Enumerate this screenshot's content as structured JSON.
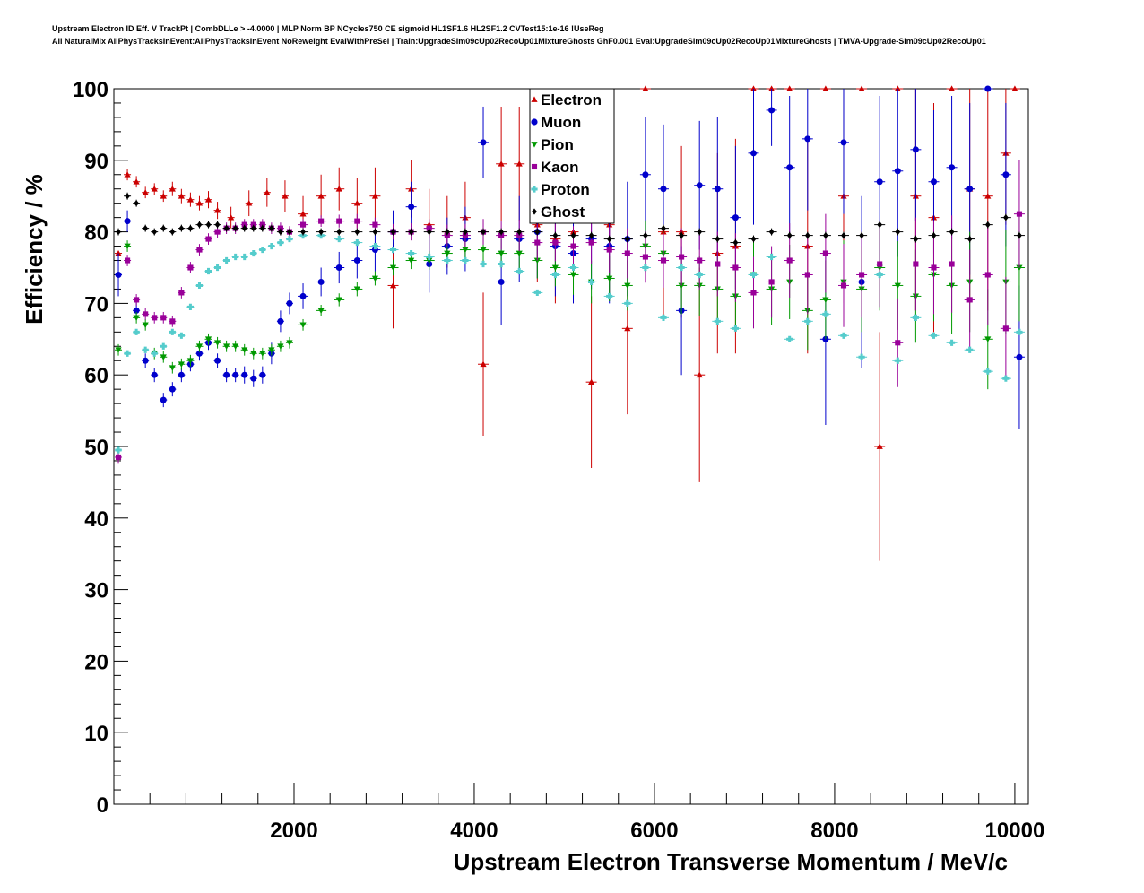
{
  "header": {
    "line1": "Upstream Electron ID Eff. V TrackPt | CombDLLe > -4.0000 | MLP Norm BP NCycles750 CE sigmoid HL1SF1.6 HL2SF1.2 CVTest15:1e-16 !UseReg",
    "line2": "All NaturalMix AllPhysTracksInEvent:AllPhysTracksInEvent NoReweight EvalWithPreSel | Train:UpgradeSim09cUp02RecoUp01MixtureGhosts GhF0.001 Eval:UpgradeSim09cUp02RecoUp01MixtureGhosts | TMVA-Upgrade-Sim09cUp02RecoUp01"
  },
  "chart_data": {
    "type": "scatter",
    "title": "Upstream Electron ID Eff. V TrackPt | CombDLLe > -4.0000 | MLP Norm BP NCycles750 CE sigmoid HL1SF1.6 HL2SF1.2 CVTest15:1e-16 !UseReg",
    "xlabel": "Upstream Electron Transverse Momentum / MeV/c",
    "ylabel": "Efficiency / %",
    "xlim": [
      0,
      10150
    ],
    "ylim": [
      0,
      100
    ],
    "xticks": [
      2000,
      4000,
      6000,
      8000,
      10000
    ],
    "yticks": [
      0,
      10,
      20,
      30,
      40,
      50,
      60,
      70,
      80,
      90,
      100
    ],
    "legend_position": "top-center",
    "grid": false,
    "series": [
      {
        "name": "Electron",
        "marker": "triangle-up",
        "color": "#cc0000",
        "x": [
          50,
          150,
          250,
          350,
          450,
          550,
          650,
          750,
          850,
          950,
          1050,
          1150,
          1300,
          1500,
          1700,
          1900,
          2100,
          2300,
          2500,
          2700,
          2900,
          3100,
          3300,
          3500,
          3700,
          3900,
          4100,
          4300,
          4500,
          4700,
          4900,
          5100,
          5300,
          5500,
          5700,
          5900,
          6100,
          6300,
          6500,
          6700,
          6900,
          7100,
          7300,
          7500,
          7700,
          7900,
          8100,
          8300,
          8500,
          8700,
          8900,
          9100,
          9300,
          9500,
          9700,
          9900,
          10000
        ],
        "y": [
          77,
          88,
          87,
          85.5,
          86,
          85,
          86,
          85,
          84.5,
          84,
          84.5,
          83,
          82,
          84,
          85.5,
          85,
          82.5,
          85,
          86,
          84,
          85,
          72.5,
          86,
          81,
          80,
          82,
          61.5,
          89.5,
          89.5,
          81,
          79,
          80,
          59,
          81,
          66.5,
          100,
          80,
          80,
          60,
          77,
          78,
          100,
          100,
          100,
          78,
          100,
          85,
          100,
          50,
          100,
          85,
          82,
          100,
          86,
          85,
          91,
          100
        ],
        "err": [
          0,
          0.8,
          0.8,
          0.8,
          0.8,
          0.8,
          1,
          1,
          1,
          1,
          1.2,
          1.2,
          1.5,
          1.8,
          2,
          2.2,
          2.5,
          3,
          3,
          3.5,
          4,
          6,
          4,
          5,
          5,
          5,
          10,
          8,
          8,
          8,
          9,
          10,
          12,
          10,
          12,
          0,
          12,
          12,
          15,
          14,
          15,
          0,
          0,
          0,
          15,
          0,
          15,
          0,
          16,
          0,
          16,
          16,
          0,
          16,
          16,
          10,
          0
        ]
      },
      {
        "name": "Muon",
        "marker": "circle",
        "color": "#0000cc",
        "x": [
          50,
          150,
          250,
          350,
          450,
          550,
          650,
          750,
          850,
          950,
          1050,
          1150,
          1250,
          1350,
          1450,
          1550,
          1650,
          1750,
          1850,
          1950,
          2100,
          2300,
          2500,
          2700,
          2900,
          3100,
          3300,
          3500,
          3700,
          3900,
          4100,
          4300,
          4500,
          4700,
          4900,
          5100,
          5300,
          5500,
          5700,
          5900,
          6100,
          6300,
          6500,
          6700,
          6900,
          7100,
          7300,
          7500,
          7700,
          7900,
          8100,
          8300,
          8500,
          8700,
          8900,
          9100,
          9300,
          9500,
          9700,
          9900,
          10050
        ],
        "y": [
          74,
          81.5,
          69,
          62,
          60,
          56.5,
          58,
          60,
          61.5,
          63,
          64.5,
          62,
          60,
          60,
          60,
          59.5,
          60,
          63,
          67.5,
          70,
          71,
          73,
          75,
          76,
          77.5,
          80,
          83.5,
          75.5,
          78,
          79,
          92.5,
          73,
          79,
          80,
          78,
          77,
          79,
          78,
          79,
          88,
          86,
          69,
          86.5,
          86,
          82,
          91,
          97,
          89,
          93,
          65,
          92.5,
          73,
          87,
          88.5,
          91.5,
          87,
          89,
          86,
          100,
          88,
          62.5
        ],
        "err": [
          3,
          1.5,
          1.2,
          1,
          1,
          1,
          1,
          1,
          1,
          1,
          1,
          1,
          1,
          1,
          1.2,
          1.2,
          1.2,
          1.5,
          1.5,
          1.5,
          1.8,
          2,
          2.2,
          2.5,
          3,
          3,
          3.5,
          4,
          4,
          4.5,
          5,
          6,
          6,
          6.5,
          7,
          7,
          7,
          8,
          8,
          8,
          9,
          9,
          9,
          10,
          10,
          10,
          5,
          10,
          10,
          12,
          10,
          12,
          12,
          12,
          10,
          10,
          10,
          12,
          0,
          10,
          10
        ]
      },
      {
        "name": "Pion",
        "marker": "triangle-down",
        "color": "#009900",
        "x": [
          50,
          150,
          250,
          350,
          450,
          550,
          650,
          750,
          850,
          950,
          1050,
          1150,
          1250,
          1350,
          1450,
          1550,
          1650,
          1750,
          1850,
          1950,
          2100,
          2300,
          2500,
          2700,
          2900,
          3100,
          3300,
          3500,
          3700,
          3900,
          4100,
          4300,
          4500,
          4700,
          4900,
          5100,
          5300,
          5500,
          5700,
          5900,
          6100,
          6300,
          6500,
          6700,
          6900,
          7100,
          7300,
          7500,
          7700,
          7900,
          8100,
          8300,
          8500,
          8700,
          8900,
          9100,
          9300,
          9500,
          9700,
          9900,
          10050
        ],
        "y": [
          63.5,
          78,
          68,
          67,
          63,
          62.5,
          61,
          61.5,
          62,
          64,
          65,
          64.5,
          64,
          64,
          63.5,
          63,
          63,
          63.5,
          64,
          64.5,
          67,
          69,
          70.5,
          72,
          73.5,
          75,
          76,
          76,
          77,
          77.5,
          77.5,
          77,
          77,
          76,
          75,
          74,
          73,
          73.5,
          72.5,
          78,
          77,
          72.5,
          72.5,
          72,
          71,
          74,
          72,
          73,
          69,
          70.5,
          73,
          72,
          75,
          72.5,
          71,
          74,
          72.5,
          73,
          65,
          73,
          75
        ],
        "err": [
          0.8,
          0.8,
          0.8,
          0.8,
          0.8,
          0.8,
          0.8,
          0.8,
          0.8,
          0.8,
          0.8,
          0.8,
          0.8,
          0.8,
          0.8,
          0.8,
          0.8,
          0.8,
          0.8,
          0.8,
          0.8,
          0.8,
          0.9,
          1,
          1,
          1.1,
          1.2,
          1.3,
          1.5,
          1.6,
          1.8,
          2,
          2.2,
          2.5,
          2.6,
          2.8,
          3,
          3.2,
          3.5,
          3.6,
          3.8,
          4,
          4.2,
          4.5,
          4.8,
          5,
          5,
          5.2,
          5.5,
          5.5,
          5.8,
          6,
          6,
          6.2,
          6.5,
          6.5,
          6.8,
          7,
          7,
          7.2,
          7.5
        ]
      },
      {
        "name": "Kaon",
        "marker": "square",
        "color": "#990099",
        "x": [
          50,
          150,
          250,
          350,
          450,
          550,
          650,
          750,
          850,
          950,
          1050,
          1150,
          1250,
          1350,
          1450,
          1550,
          1650,
          1750,
          1850,
          1950,
          2100,
          2300,
          2500,
          2700,
          2900,
          3100,
          3300,
          3500,
          3700,
          3900,
          4100,
          4300,
          4500,
          4700,
          4900,
          5100,
          5300,
          5500,
          5700,
          5900,
          6100,
          6300,
          6500,
          6700,
          6900,
          7100,
          7300,
          7500,
          7700,
          7900,
          8100,
          8300,
          8500,
          8700,
          8900,
          9100,
          9300,
          9500,
          9700,
          9900,
          10050
        ],
        "y": [
          48.5,
          76,
          70.5,
          68.5,
          68,
          68,
          67.5,
          71.5,
          75,
          77.5,
          79,
          80,
          80.5,
          80.5,
          81,
          81,
          81,
          80.5,
          80.5,
          80,
          81,
          81.5,
          81.5,
          81.5,
          81,
          80,
          80,
          80.5,
          79.5,
          79.5,
          80,
          79.5,
          79.5,
          78.5,
          78.5,
          78,
          78.5,
          77.5,
          77,
          76.5,
          76,
          76.5,
          76,
          75.5,
          75,
          71.5,
          73,
          76,
          74,
          77,
          72.5,
          74,
          75.5,
          64.5,
          75.5,
          75,
          75.5,
          70.5,
          74,
          66.5,
          82.5
        ],
        "err": [
          0.8,
          0.8,
          0.8,
          0.8,
          0.8,
          0.8,
          0.8,
          0.8,
          0.8,
          0.8,
          0.8,
          0.8,
          0.8,
          0.8,
          0.8,
          0.8,
          0.8,
          0.8,
          0.8,
          0.8,
          0.8,
          0.8,
          0.9,
          1,
          1,
          1.1,
          1.2,
          1.3,
          1.5,
          1.6,
          1.8,
          2,
          2.2,
          2.5,
          2.6,
          2.8,
          3,
          3.2,
          3.5,
          3.6,
          3.8,
          4,
          4.2,
          4.5,
          4.8,
          5,
          5,
          5.2,
          5.5,
          5.5,
          5.8,
          6,
          6,
          6.2,
          6.5,
          6.5,
          6.8,
          7,
          7,
          7.2,
          7.5
        ]
      },
      {
        "name": "Proton",
        "marker": "cross",
        "color": "#55cccc",
        "x": [
          50,
          150,
          250,
          350,
          450,
          550,
          650,
          750,
          850,
          950,
          1050,
          1150,
          1250,
          1350,
          1450,
          1550,
          1650,
          1750,
          1850,
          1950,
          2100,
          2300,
          2500,
          2700,
          2900,
          3100,
          3300,
          3500,
          3700,
          3900,
          4100,
          4300,
          4500,
          4700,
          4900,
          5100,
          5300,
          5500,
          5700,
          5900,
          6100,
          6300,
          6500,
          6700,
          6900,
          7100,
          7300,
          7500,
          7700,
          7900,
          8100,
          8300,
          8500,
          8700,
          8900,
          9100,
          9300,
          9500,
          9700,
          9900,
          10050
        ],
        "y": [
          49.5,
          63,
          66,
          63.5,
          63,
          64,
          66,
          65.5,
          69.5,
          72.5,
          74.5,
          75,
          76,
          76.5,
          76.5,
          77,
          77.5,
          78,
          78.5,
          79,
          79.5,
          79.5,
          79,
          78.5,
          78,
          77.5,
          77,
          76.5,
          76,
          76,
          75.5,
          75.5,
          74.5,
          71.5,
          74,
          75,
          73,
          71,
          70,
          75,
          68,
          75,
          74,
          67.5,
          66.5,
          74,
          76.5,
          65,
          67.5,
          68.5,
          65.5,
          62.5,
          74,
          62,
          68,
          65.5,
          64.5,
          63.5,
          60.5,
          59.5,
          66
        ]
      },
      {
        "name": "Ghost",
        "marker": "diamond",
        "color": "#000000",
        "x": [
          50,
          150,
          250,
          350,
          450,
          550,
          650,
          750,
          850,
          950,
          1050,
          1150,
          1250,
          1350,
          1450,
          1550,
          1650,
          1750,
          1850,
          1950,
          2100,
          2300,
          2500,
          2700,
          2900,
          3100,
          3300,
          3500,
          3700,
          3900,
          4100,
          4300,
          4500,
          4700,
          4900,
          5100,
          5300,
          5500,
          5700,
          5900,
          6100,
          6300,
          6500,
          6700,
          6900,
          7100,
          7300,
          7500,
          7700,
          7900,
          8100,
          8300,
          8500,
          8700,
          8900,
          9100,
          9300,
          9500,
          9700,
          9900,
          10050
        ],
        "y": [
          80,
          85,
          84,
          80.5,
          80,
          80.5,
          80,
          80.5,
          80.5,
          81,
          81,
          81,
          80.5,
          80.5,
          80.5,
          80.5,
          80.5,
          80.5,
          80,
          80,
          80,
          80,
          80,
          80,
          80,
          80,
          80,
          80,
          80,
          80,
          80,
          80,
          80,
          80,
          79.5,
          79.5,
          79.5,
          79,
          79,
          79.5,
          80.5,
          79.5,
          80,
          79,
          78.5,
          79,
          80,
          79.5,
          79.5,
          79.5,
          79.5,
          79.5,
          81,
          80,
          79,
          79.5,
          80,
          79,
          81,
          82,
          79.5
        ],
        "err": [
          0.5,
          0.5,
          0.5,
          0.5,
          0.5,
          0.5,
          0.5,
          0.5,
          0.5,
          0.5,
          0.5,
          0.5,
          0.5,
          0.5,
          0.5,
          0.5,
          0.5,
          0.5,
          0.5,
          0.5,
          0.5,
          0.5,
          0.5,
          0.5,
          0.5,
          0.5,
          0.5,
          0.5,
          0.5,
          0.5,
          0.5,
          0.5,
          0.5,
          0.5,
          0.5,
          0.5,
          0.5,
          0.5,
          0.5,
          0.5,
          0.5,
          0.5,
          0.5,
          0.5,
          0.5,
          0.5,
          0.5,
          0.5,
          0.5,
          0.5,
          0.5,
          0.5,
          0.5,
          0.5,
          0.5,
          0.5,
          0.5,
          0.5,
          0.5,
          0.5,
          0.5
        ]
      }
    ]
  }
}
